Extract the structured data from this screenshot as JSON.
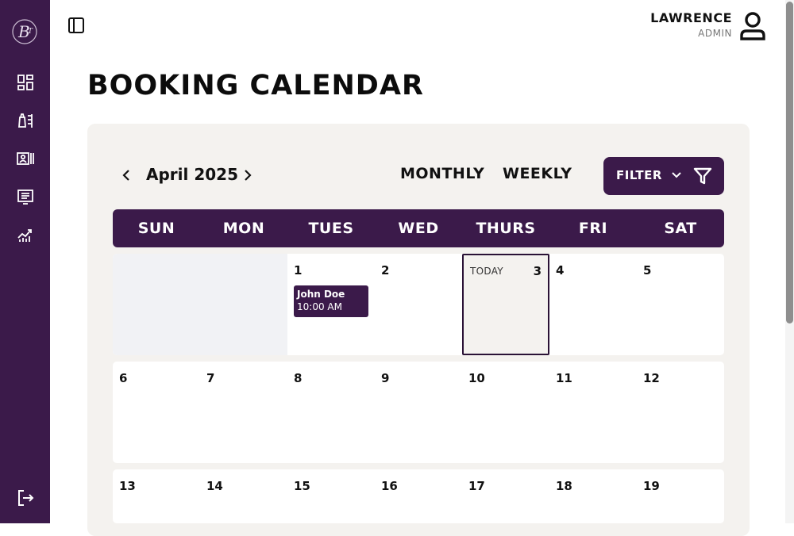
{
  "sidebar": {
    "logo_text": "B",
    "items": [
      {
        "icon": "dashboard-icon"
      },
      {
        "icon": "services-icon"
      },
      {
        "icon": "booking-icon"
      },
      {
        "icon": "orders-icon"
      },
      {
        "icon": "analytics-icon"
      }
    ],
    "logout_icon": "logout-icon"
  },
  "header": {
    "user_name": "LAWRENCE",
    "user_role": "ADMIN"
  },
  "page": {
    "title": "BOOKING CALENDAR"
  },
  "calendar": {
    "month_label": "April 2025",
    "views": [
      "MONTHLY",
      "WEEKLY"
    ],
    "filter_label": "FILTER",
    "day_headers": [
      "SUN",
      "MON",
      "TUES",
      "WED",
      "THURS",
      "FRI",
      "SAT"
    ],
    "today_label": "TODAY",
    "weeks": [
      [
        "",
        "",
        "1",
        "2",
        "3",
        "4",
        "5"
      ],
      [
        "6",
        "7",
        "8",
        "9",
        "10",
        "11",
        "12"
      ],
      [
        "13",
        "14",
        "15",
        "16",
        "17",
        "18",
        "19"
      ]
    ],
    "event": {
      "name": "John Doe",
      "time": "10:00 AM"
    }
  },
  "colors": {
    "brand": "#3b1a4a",
    "panel": "#f4f2ef",
    "empty_cell": "#f1f2f5"
  }
}
